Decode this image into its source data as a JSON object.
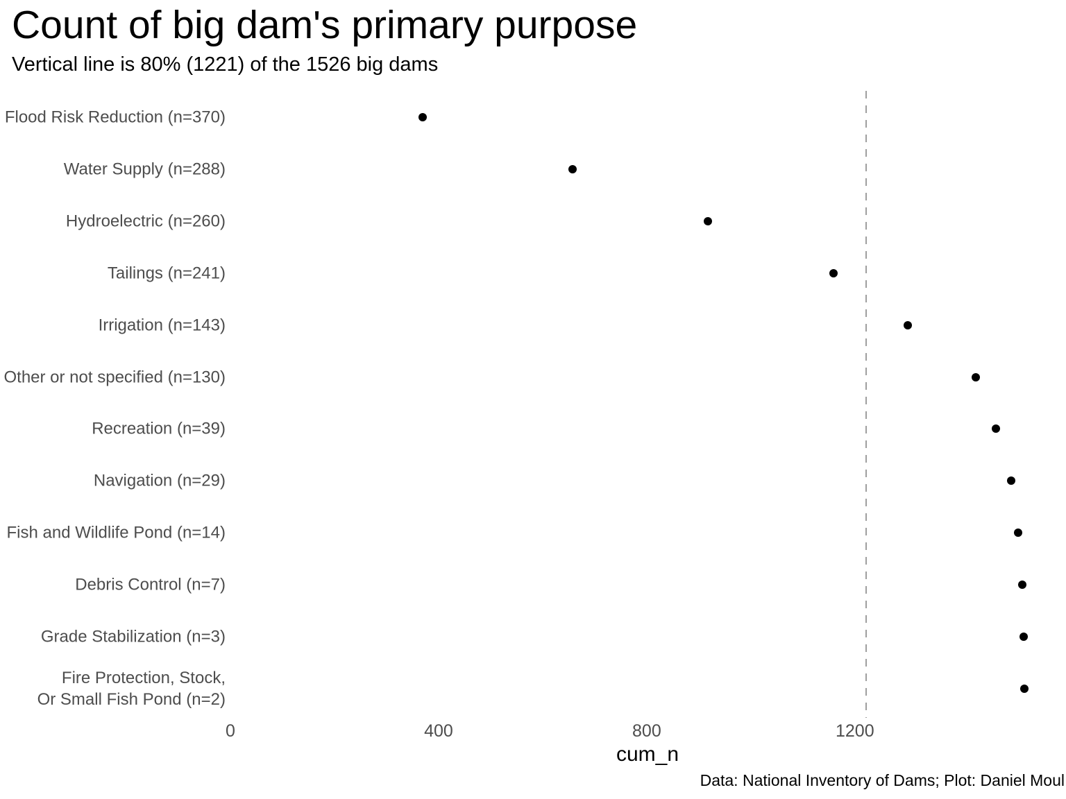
{
  "chart_data": {
    "type": "scatter",
    "title": "Count of big dam's primary purpose",
    "subtitle": "Vertical line is 80% (1221) of the 1526 big dams",
    "caption": "Data: National Inventory of Dams; Plot: Daniel Moul",
    "xlabel": "cum_n",
    "x_ticks": [
      0,
      400,
      800,
      1200
    ],
    "x_domain": [
      0,
      1603
    ],
    "grid": false,
    "legend": "none",
    "total_dams": 1526,
    "reference_line": {
      "x": 1221,
      "style": "dashed",
      "meaning": "80% (1221) of the 1526 big dams"
    },
    "points": [
      {
        "label": "Flood Risk Reduction (n=370)",
        "n": 370,
        "cum_n": 370
      },
      {
        "label": "Water Supply (n=288)",
        "n": 288,
        "cum_n": 658
      },
      {
        "label": "Hydroelectric (n=260)",
        "n": 260,
        "cum_n": 918
      },
      {
        "label": "Tailings (n=241)",
        "n": 241,
        "cum_n": 1159
      },
      {
        "label": "Irrigation (n=143)",
        "n": 143,
        "cum_n": 1302
      },
      {
        "label": "Other or not specified (n=130)",
        "n": 130,
        "cum_n": 1432
      },
      {
        "label": "Recreation (n=39)",
        "n": 39,
        "cum_n": 1471
      },
      {
        "label": "Navigation (n=29)",
        "n": 29,
        "cum_n": 1500
      },
      {
        "label": "Fish and Wildlife Pond (n=14)",
        "n": 14,
        "cum_n": 1514
      },
      {
        "label": "Debris Control (n=7)",
        "n": 7,
        "cum_n": 1521
      },
      {
        "label": "Grade Stabilization (n=3)",
        "n": 3,
        "cum_n": 1524
      },
      {
        "label": "Fire Protection, Stock,\nOr Small Fish Pond (n=2)",
        "n": 2,
        "cum_n": 1526
      }
    ]
  },
  "colors": {
    "point": "#000000",
    "axis_text": "#4D4D4D",
    "title_text": "#000000",
    "reference_line": "#9E9E9E",
    "background": "#FFFFFF"
  }
}
